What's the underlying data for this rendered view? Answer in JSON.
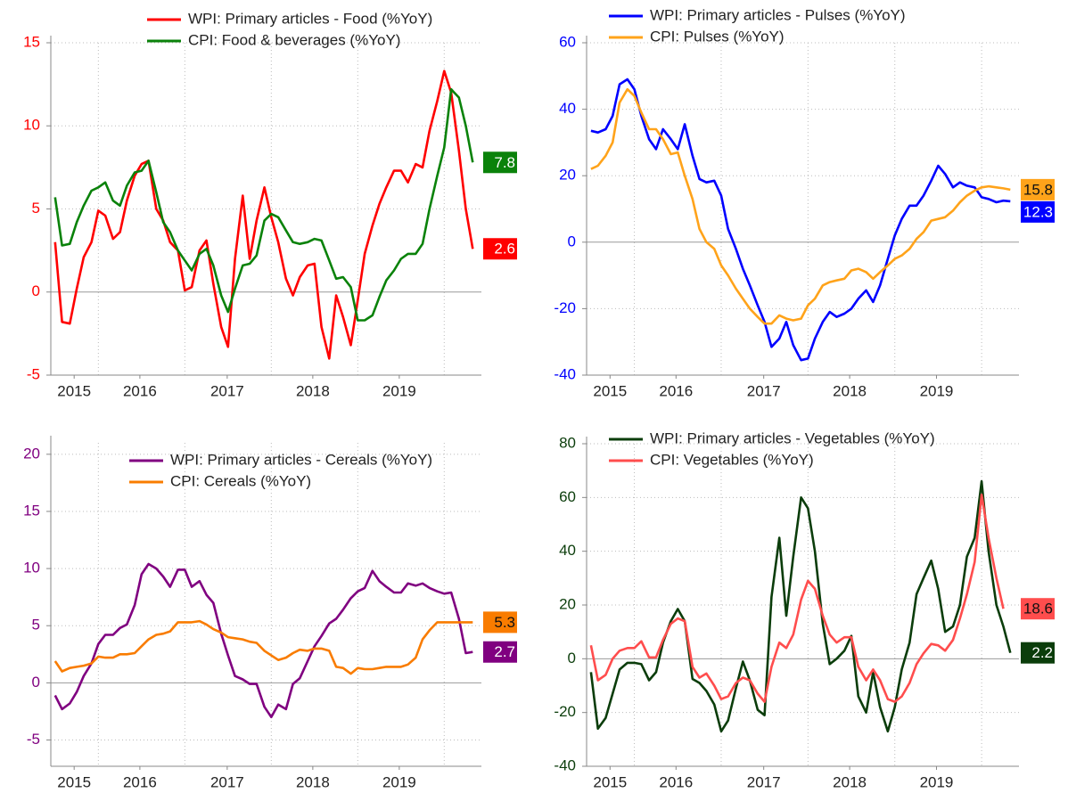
{
  "chart_data": [
    {
      "type": "line",
      "axis_color": "#ff0000",
      "legend": "upper center",
      "grid": true,
      "x": [
        2015.5,
        2015.58,
        2015.67,
        2015.75,
        2015.83,
        2015.92,
        2016,
        2016.08,
        2016.17,
        2016.25,
        2016.33,
        2016.42,
        2016.5,
        2016.58,
        2016.67,
        2016.75,
        2016.83,
        2016.92,
        2017,
        2017.08,
        2017.17,
        2017.25,
        2017.33,
        2017.42,
        2017.5,
        2017.58,
        2017.67,
        2017.75,
        2017.83,
        2017.92,
        2018,
        2018.08,
        2018.17,
        2018.25,
        2018.33,
        2018.42,
        2018.5,
        2018.58,
        2018.67,
        2018.75,
        2018.83,
        2018.92,
        2019,
        2019.08,
        2019.17,
        2019.25,
        2019.33,
        2019.42,
        2019.5,
        2019.58,
        2019.67,
        2019.75,
        2019.83,
        2019.92,
        2020,
        2020.08,
        2020.17,
        2020.25,
        2020.33
      ],
      "xlim": [
        2015.45,
        2020.43
      ],
      "xticks": [
        {
          "value": 2015.72,
          "label": "2015"
        },
        {
          "value": 2016.48,
          "label": "2016"
        },
        {
          "value": 2017.49,
          "label": "2017"
        },
        {
          "value": 2018.48,
          "label": "2018"
        },
        {
          "value": 2019.48,
          "label": "2019"
        }
      ],
      "xgrid": [
        2016,
        2017,
        2018,
        2019,
        2020
      ],
      "ylim": [
        -5,
        15
      ],
      "yticks": [
        -5,
        0,
        5,
        10,
        15
      ],
      "series": [
        {
          "name": "WPI: Primary articles - Food (%YoY)",
          "color": "#ff0000",
          "values": [
            3.0,
            -1.8,
            -1.9,
            0.2,
            2.1,
            3.0,
            4.9,
            4.6,
            3.2,
            3.6,
            5.5,
            7.0,
            7.7,
            7.9,
            5.0,
            4.3,
            3.0,
            2.5,
            0.1,
            0.3,
            2.5,
            3.1,
            0.5,
            -2.1,
            -3.3,
            2.0,
            5.8,
            2.0,
            4.3,
            6.3,
            4.5,
            3.0,
            0.8,
            -0.2,
            0.9,
            1.6,
            1.7,
            -2.1,
            -4.0,
            -0.2,
            -1.5,
            -3.2,
            -0.5,
            2.3,
            4.0,
            5.3,
            6.3,
            7.3,
            7.3,
            6.6,
            7.7,
            7.5,
            9.7,
            11.5,
            13.3,
            12.0,
            8.5,
            5.0,
            2.6
          ]
        },
        {
          "name": "CPI: Food & beverages  (%YoY)",
          "color": "#0a820a",
          "values": [
            5.7,
            2.8,
            2.9,
            4.2,
            5.2,
            6.1,
            6.3,
            6.6,
            5.5,
            5.2,
            6.4,
            7.2,
            7.3,
            7.9,
            6.0,
            4.2,
            3.6,
            2.5,
            1.9,
            1.3,
            2.3,
            2.6,
            1.6,
            -0.2,
            -1.2,
            0.2,
            1.6,
            1.7,
            2.2,
            4.3,
            4.7,
            4.5,
            3.7,
            3.0,
            2.9,
            3.0,
            3.2,
            3.1,
            1.9,
            0.8,
            0.9,
            0.3,
            -1.7,
            -1.7,
            -1.4,
            -0.3,
            0.7,
            1.3,
            2.0,
            2.3,
            2.3,
            2.9,
            5.0,
            7.0,
            8.7,
            12.2,
            11.7,
            10.0,
            7.8
          ]
        }
      ]
    },
    {
      "type": "line",
      "axis_color": "#0000ff",
      "legend": "upper center",
      "grid": true,
      "x": [
        2015.5,
        2015.58,
        2015.67,
        2015.75,
        2015.83,
        2015.92,
        2016,
        2016.08,
        2016.17,
        2016.25,
        2016.33,
        2016.42,
        2016.5,
        2016.58,
        2016.67,
        2016.75,
        2016.83,
        2016.92,
        2017,
        2017.08,
        2017.17,
        2017.25,
        2017.33,
        2017.42,
        2017.5,
        2017.58,
        2017.67,
        2017.75,
        2017.83,
        2017.92,
        2018,
        2018.08,
        2018.17,
        2018.25,
        2018.33,
        2018.42,
        2018.5,
        2018.58,
        2018.67,
        2018.75,
        2018.83,
        2018.92,
        2019,
        2019.08,
        2019.17,
        2019.25,
        2019.33,
        2019.42,
        2019.5,
        2019.58,
        2019.67,
        2019.75,
        2019.83,
        2019.92,
        2020,
        2020.08,
        2020.17,
        2020.25,
        2020.33
      ],
      "xlim": [
        2015.45,
        2020.43
      ],
      "xticks": [
        {
          "value": 2015.72,
          "label": "2015"
        },
        {
          "value": 2016.48,
          "label": "2016"
        },
        {
          "value": 2017.49,
          "label": "2017"
        },
        {
          "value": 2018.48,
          "label": "2018"
        },
        {
          "value": 2019.48,
          "label": "2019"
        }
      ],
      "xgrid": [
        2016,
        2017,
        2018,
        2019,
        2020
      ],
      "ylim": [
        -40,
        60
      ],
      "yticks": [
        -40,
        -20,
        0,
        20,
        40,
        60
      ],
      "series": [
        {
          "name": "WPI: Primary articles - Pulses (%YoY)",
          "color": "#0000ff",
          "values": [
            33.5,
            33,
            34,
            38,
            47.5,
            49,
            46,
            38,
            31,
            28,
            34,
            31,
            28,
            35.5,
            26,
            19,
            18,
            18.5,
            14,
            4,
            -2,
            -8,
            -13,
            -19,
            -24,
            -31.5,
            -29,
            -24,
            -31,
            -35.5,
            -35,
            -29,
            -24,
            -21,
            -22.5,
            -21.5,
            -20,
            -17,
            -14.5,
            -18,
            -13,
            -5,
            2,
            7,
            11,
            11,
            14,
            18.5,
            23,
            20.5,
            16.5,
            18,
            17,
            16.5,
            13.5,
            13,
            12,
            12.5,
            12.3
          ]
        },
        {
          "name": "CPI: Pulses  (%YoY)",
          "color": "#ffa31a",
          "values": [
            22,
            23,
            26,
            30,
            42,
            46,
            44,
            39,
            34,
            34,
            31,
            26.5,
            27,
            20,
            13,
            4,
            0,
            -2,
            -7,
            -10,
            -14,
            -17,
            -20,
            -22.5,
            -24.5,
            -24.5,
            -22,
            -23,
            -23.5,
            -23,
            -19,
            -17,
            -13,
            -12,
            -11.5,
            -11,
            -8.5,
            -8,
            -9,
            -11,
            -9,
            -7,
            -5,
            -4,
            -2,
            1,
            3,
            6.5,
            7,
            7.5,
            9.5,
            12,
            14,
            15.5,
            16.5,
            16.8,
            16.5,
            16.2,
            15.8
          ]
        }
      ]
    },
    {
      "type": "line",
      "axis_color": "#800080",
      "legend": "upper center",
      "grid": true,
      "x": [
        2015.5,
        2015.58,
        2015.67,
        2015.75,
        2015.83,
        2015.92,
        2016,
        2016.08,
        2016.17,
        2016.25,
        2016.33,
        2016.42,
        2016.5,
        2016.58,
        2016.67,
        2016.75,
        2016.83,
        2016.92,
        2017,
        2017.08,
        2017.17,
        2017.25,
        2017.33,
        2017.42,
        2017.5,
        2017.58,
        2017.67,
        2017.75,
        2017.83,
        2017.92,
        2018,
        2018.08,
        2018.17,
        2018.25,
        2018.33,
        2018.42,
        2018.5,
        2018.58,
        2018.67,
        2018.75,
        2018.83,
        2018.92,
        2019,
        2019.08,
        2019.17,
        2019.25,
        2019.33,
        2019.42,
        2019.5,
        2019.58,
        2019.67,
        2019.75,
        2019.83,
        2019.92,
        2020,
        2020.08,
        2020.17,
        2020.25,
        2020.33
      ],
      "xlim": [
        2015.45,
        2020.43
      ],
      "xticks": [
        {
          "value": 2015.72,
          "label": "2015"
        },
        {
          "value": 2016.48,
          "label": "2016"
        },
        {
          "value": 2017.49,
          "label": "2017"
        },
        {
          "value": 2018.48,
          "label": "2018"
        },
        {
          "value": 2019.48,
          "label": "2019"
        }
      ],
      "xgrid": [
        2016,
        2017,
        2018,
        2019,
        2020
      ],
      "ylim": [
        -7.3,
        21
      ],
      "yticks": [
        -5,
        0,
        5,
        10,
        15,
        20
      ],
      "series": [
        {
          "name": "WPI: Primary articles - Cereals (%YoY)",
          "color": "#800080",
          "values": [
            -1.1,
            -2.3,
            -1.8,
            -0.8,
            0.6,
            1.7,
            3.4,
            4.2,
            4.2,
            4.8,
            5.1,
            6.8,
            9.5,
            10.4,
            10.0,
            9.3,
            8.4,
            9.9,
            9.9,
            8.4,
            8.9,
            7.7,
            7.0,
            4.3,
            2.4,
            0.6,
            0.3,
            -0.1,
            -0.1,
            -2.1,
            -3.0,
            -1.9,
            -2.3,
            -0.1,
            0.4,
            1.9,
            3.2,
            4.1,
            5.2,
            5.6,
            6.4,
            7.4,
            8.0,
            8.3,
            9.8,
            8.9,
            8.4,
            7.9,
            7.9,
            8.7,
            8.5,
            8.7,
            8.3,
            8.0,
            7.8,
            7.9,
            5.6,
            2.6,
            2.7
          ]
        },
        {
          "name": "CPI: Cereals (%YoY)",
          "color": "#f97c00",
          "values": [
            1.9,
            1.0,
            1.3,
            1.4,
            1.5,
            1.7,
            2.3,
            2.2,
            2.2,
            2.5,
            2.5,
            2.6,
            3.2,
            3.8,
            4.2,
            4.3,
            4.5,
            5.3,
            5.3,
            5.3,
            5.4,
            5.1,
            4.7,
            4.4,
            4.0,
            3.9,
            3.8,
            3.6,
            3.5,
            2.8,
            2.4,
            2.0,
            2.2,
            2.6,
            2.9,
            2.8,
            3.0,
            3.0,
            2.8,
            1.4,
            1.3,
            0.8,
            1.3,
            1.2,
            1.2,
            1.3,
            1.4,
            1.4,
            1.4,
            1.6,
            2.2,
            3.8,
            4.6,
            5.3,
            5.3,
            5.3,
            5.3,
            5.3,
            5.3
          ]
        }
      ]
    },
    {
      "type": "line",
      "axis_color": "#0b3d0b",
      "legend": "upper center",
      "grid": true,
      "x": [
        2015.5,
        2015.58,
        2015.67,
        2015.75,
        2015.83,
        2015.92,
        2016,
        2016.08,
        2016.17,
        2016.25,
        2016.33,
        2016.42,
        2016.5,
        2016.58,
        2016.67,
        2016.75,
        2016.83,
        2016.92,
        2017,
        2017.08,
        2017.17,
        2017.25,
        2017.33,
        2017.42,
        2017.5,
        2017.58,
        2017.67,
        2017.75,
        2017.83,
        2017.92,
        2018,
        2018.08,
        2018.17,
        2018.25,
        2018.33,
        2018.42,
        2018.5,
        2018.58,
        2018.67,
        2018.75,
        2018.83,
        2018.92,
        2019,
        2019.08,
        2019.17,
        2019.25,
        2019.33,
        2019.42,
        2019.5,
        2019.58,
        2019.67,
        2019.75,
        2019.83,
        2019.92,
        2020,
        2020.08,
        2020.17,
        2020.25,
        2020.33
      ],
      "xlim": [
        2015.45,
        2020.43
      ],
      "xticks": [
        {
          "value": 2015.72,
          "label": "2015"
        },
        {
          "value": 2016.48,
          "label": "2016"
        },
        {
          "value": 2017.49,
          "label": "2017"
        },
        {
          "value": 2018.48,
          "label": "2018"
        },
        {
          "value": 2019.48,
          "label": "2019"
        }
      ],
      "xgrid": [
        2016,
        2017,
        2018,
        2019,
        2020
      ],
      "ylim": [
        -40,
        80
      ],
      "yticks": [
        -40,
        -20,
        0,
        20,
        40,
        60,
        80
      ],
      "series": [
        {
          "name": "WPI: Primary articles - Vegetables (%YoY)",
          "color": "#0b3d0b",
          "values": [
            -5,
            -26,
            -22,
            -13,
            -4,
            -1.5,
            -1.5,
            -2,
            -8,
            -5,
            6,
            14,
            18.5,
            14,
            -7.5,
            -9,
            -12,
            -17,
            -27,
            -23,
            -11,
            -1,
            -8,
            -19,
            -21,
            23,
            45,
            16,
            38,
            60,
            56,
            40,
            13,
            -2,
            0,
            3,
            8.5,
            -14,
            -20,
            -5,
            -18,
            -27,
            -18,
            -4,
            6,
            24,
            30,
            36.5,
            26,
            10,
            12,
            20,
            38,
            45,
            66,
            40,
            20,
            12,
            2.2
          ]
        },
        {
          "name": "CPI: Vegetables (%YoY)",
          "color": "#ff4d4d",
          "values": [
            5,
            -8,
            -6,
            0,
            3,
            4,
            4,
            6.5,
            0.5,
            0.5,
            7,
            13,
            15,
            14,
            -3,
            -7,
            -5.5,
            -10,
            -15,
            -14,
            -9,
            -7,
            -8,
            -13,
            -16,
            -3,
            6,
            4,
            9,
            22,
            29,
            26,
            16,
            9,
            6,
            8,
            8,
            -3,
            -8,
            -4,
            -8,
            -15,
            -16,
            -14,
            -9,
            -2,
            2,
            5.5,
            5,
            3,
            7,
            15,
            24,
            36,
            61,
            45,
            30,
            18.6,
            null
          ]
        }
      ]
    }
  ]
}
